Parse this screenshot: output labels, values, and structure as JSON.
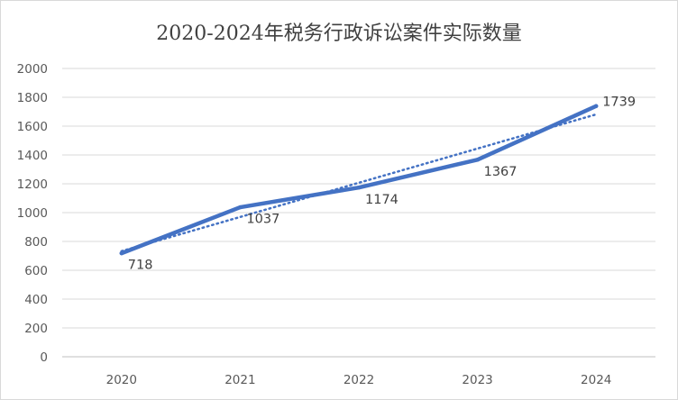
{
  "chart_data": {
    "type": "line",
    "title": "2020-2024年税务行政诉讼案件实际数量",
    "categories": [
      "2020",
      "2021",
      "2022",
      "2023",
      "2024"
    ],
    "values": [
      718,
      1037,
      1174,
      1367,
      1739
    ],
    "data_labels": [
      "718",
      "1037",
      "1174",
      "1367",
      "1739"
    ],
    "y_ticks": [
      "0",
      "200",
      "400",
      "600",
      "800",
      "1000",
      "1200",
      "1400",
      "1600",
      "1800",
      "2000"
    ],
    "ylim": [
      0,
      2000
    ],
    "trendline": {
      "type": "linear",
      "style": "dotted"
    },
    "grid": true,
    "legend": "none",
    "colors": {
      "line": "#4472c4",
      "grid": "#d9d9d9",
      "axis": "#bfbfbf",
      "text": "#595959"
    }
  }
}
